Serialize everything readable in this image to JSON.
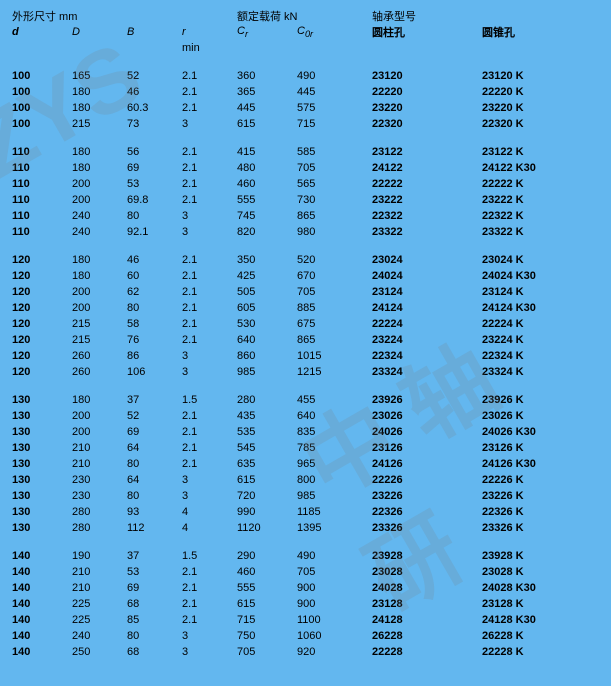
{
  "background_color": "#63b7ef",
  "watermarks": [
    "ZYS",
    "中 轴研"
  ],
  "header_group1": {
    "dims": "外形尺寸  mm",
    "load": "额定载荷  kN",
    "model": "轴承型号"
  },
  "header_group2": {
    "d": "d",
    "D": "D",
    "B": "B",
    "r": "r",
    "Cr": "C",
    "CrSub": "r",
    "C0r": "C",
    "C0rSub": "0r",
    "m1": "圆柱孔",
    "m2": "圆锥孔"
  },
  "header_group3": {
    "r": "min"
  },
  "groups": [
    [
      {
        "d": "100",
        "D": "165",
        "B": "52",
        "r": "2.1",
        "Cr": "360",
        "C0r": "490",
        "m1": "23120",
        "m2": "23120 K"
      },
      {
        "d": "100",
        "D": "180",
        "B": "46",
        "r": "2.1",
        "Cr": "365",
        "C0r": "445",
        "m1": "22220",
        "m2": "22220 K"
      },
      {
        "d": "100",
        "D": "180",
        "B": "60.3",
        "r": "2.1",
        "Cr": "445",
        "C0r": "575",
        "m1": "23220",
        "m2": "23220 K"
      },
      {
        "d": "100",
        "D": "215",
        "B": "73",
        "r": "3",
        "Cr": "615",
        "C0r": "715",
        "m1": "22320",
        "m2": "22320 K"
      }
    ],
    [
      {
        "d": "110",
        "D": "180",
        "B": "56",
        "r": "2.1",
        "Cr": "415",
        "C0r": "585",
        "m1": "23122",
        "m2": "23122 K"
      },
      {
        "d": "110",
        "D": "180",
        "B": "69",
        "r": "2.1",
        "Cr": "480",
        "C0r": "705",
        "m1": "24122",
        "m2": "24122 K30"
      },
      {
        "d": "110",
        "D": "200",
        "B": "53",
        "r": "2.1",
        "Cr": "460",
        "C0r": "565",
        "m1": "22222",
        "m2": "22222 K"
      },
      {
        "d": "110",
        "D": "200",
        "B": "69.8",
        "r": "2.1",
        "Cr": "555",
        "C0r": "730",
        "m1": "23222",
        "m2": "23222 K"
      },
      {
        "d": "110",
        "D": "240",
        "B": "80",
        "r": "3",
        "Cr": "745",
        "C0r": "865",
        "m1": "22322",
        "m2": "22322 K"
      },
      {
        "d": "110",
        "D": "240",
        "B": "92.1",
        "r": "3",
        "Cr": "820",
        "C0r": "980",
        "m1": "23322",
        "m2": "23322 K"
      }
    ],
    [
      {
        "d": "120",
        "D": "180",
        "B": "46",
        "r": "2.1",
        "Cr": "350",
        "C0r": "520",
        "m1": "23024",
        "m2": "23024 K"
      },
      {
        "d": "120",
        "D": "180",
        "B": "60",
        "r": "2.1",
        "Cr": "425",
        "C0r": "670",
        "m1": "24024",
        "m2": "24024 K30"
      },
      {
        "d": "120",
        "D": "200",
        "B": "62",
        "r": "2.1",
        "Cr": "505",
        "C0r": "705",
        "m1": "23124",
        "m2": "23124 K"
      },
      {
        "d": "120",
        "D": "200",
        "B": "80",
        "r": "2.1",
        "Cr": "605",
        "C0r": "885",
        "m1": "24124",
        "m2": "24124 K30"
      },
      {
        "d": "120",
        "D": "215",
        "B": "58",
        "r": "2.1",
        "Cr": "530",
        "C0r": "675",
        "m1": "22224",
        "m2": "22224 K"
      },
      {
        "d": "120",
        "D": "215",
        "B": "76",
        "r": "2.1",
        "Cr": "640",
        "C0r": "865",
        "m1": "23224",
        "m2": "23224 K"
      },
      {
        "d": "120",
        "D": "260",
        "B": "86",
        "r": "3",
        "Cr": "860",
        "C0r": "1015",
        "m1": "22324",
        "m2": "22324 K"
      },
      {
        "d": "120",
        "D": "260",
        "B": "106",
        "r": "3",
        "Cr": "985",
        "C0r": "1215",
        "m1": "23324",
        "m2": "23324 K"
      }
    ],
    [
      {
        "d": "130",
        "D": "180",
        "B": "37",
        "r": "1.5",
        "Cr": "280",
        "C0r": "455",
        "m1": "23926",
        "m2": "23926 K"
      },
      {
        "d": "130",
        "D": "200",
        "B": "52",
        "r": "2.1",
        "Cr": "435",
        "C0r": "640",
        "m1": "23026",
        "m2": "23026 K"
      },
      {
        "d": "130",
        "D": "200",
        "B": "69",
        "r": "2.1",
        "Cr": "535",
        "C0r": "835",
        "m1": "24026",
        "m2": "24026 K30"
      },
      {
        "d": "130",
        "D": "210",
        "B": "64",
        "r": "2.1",
        "Cr": "545",
        "C0r": "785",
        "m1": "23126",
        "m2": "23126 K"
      },
      {
        "d": "130",
        "D": "210",
        "B": "80",
        "r": "2.1",
        "Cr": "635",
        "C0r": "965",
        "m1": "24126",
        "m2": "24126 K30"
      },
      {
        "d": "130",
        "D": "230",
        "B": "64",
        "r": "3",
        "Cr": "615",
        "C0r": "800",
        "m1": "22226",
        "m2": "22226 K"
      },
      {
        "d": "130",
        "D": "230",
        "B": "80",
        "r": "3",
        "Cr": "720",
        "C0r": "985",
        "m1": "23226",
        "m2": "23226 K"
      },
      {
        "d": "130",
        "D": "280",
        "B": "93",
        "r": "4",
        "Cr": "990",
        "C0r": "1185",
        "m1": "22326",
        "m2": "22326 K"
      },
      {
        "d": "130",
        "D": "280",
        "B": "112",
        "r": "4",
        "Cr": "1120",
        "C0r": "1395",
        "m1": "23326",
        "m2": "23326 K"
      }
    ],
    [
      {
        "d": "140",
        "D": "190",
        "B": "37",
        "r": "1.5",
        "Cr": "290",
        "C0r": "490",
        "m1": "23928",
        "m2": "23928 K"
      },
      {
        "d": "140",
        "D": "210",
        "B": "53",
        "r": "2.1",
        "Cr": "460",
        "C0r": "705",
        "m1": "23028",
        "m2": "23028 K"
      },
      {
        "d": "140",
        "D": "210",
        "B": "69",
        "r": "2.1",
        "Cr": "555",
        "C0r": "900",
        "m1": "24028",
        "m2": "24028 K30"
      },
      {
        "d": "140",
        "D": "225",
        "B": "68",
        "r": "2.1",
        "Cr": "615",
        "C0r": "900",
        "m1": "23128",
        "m2": "23128 K"
      },
      {
        "d": "140",
        "D": "225",
        "B": "85",
        "r": "2.1",
        "Cr": "715",
        "C0r": "1100",
        "m1": "24128",
        "m2": "24128 K30"
      },
      {
        "d": "140",
        "D": "240",
        "B": "80",
        "r": "3",
        "Cr": "750",
        "C0r": "1060",
        "m1": "26228",
        "m2": "26228 K"
      },
      {
        "d": "140",
        "D": "250",
        "B": "68",
        "r": "3",
        "Cr": "705",
        "C0r": "920",
        "m1": "22228",
        "m2": "22228 K"
      }
    ]
  ]
}
